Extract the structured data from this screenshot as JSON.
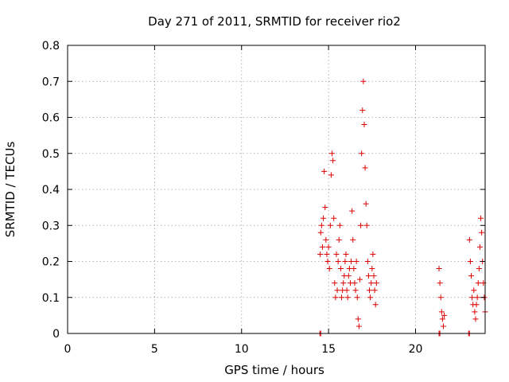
{
  "chart_data": {
    "type": "scatter",
    "title": "Day 271 of 2011, SRMTID for receiver rio2",
    "xlabel": "GPS time / hours",
    "ylabel": "SRMTID / TECUs",
    "xlim": [
      0,
      24
    ],
    "ylim": [
      0,
      0.8
    ],
    "xticks": [
      0,
      5,
      10,
      15,
      20
    ],
    "xtick_labels": [
      "0",
      "5",
      "10",
      "15",
      "20"
    ],
    "yticks": [
      0,
      0.1,
      0.2,
      0.3,
      0.4,
      0.5,
      0.6,
      0.7,
      0.8
    ],
    "ytick_labels": [
      "0",
      "0.1",
      "0.2",
      "0.3",
      "0.4",
      "0.5",
      "0.6",
      "0.7",
      "0.8"
    ],
    "grid": true,
    "legend": false,
    "marker": "+",
    "color": "#dd0000",
    "series": [
      {
        "name": "rio2",
        "x": [
          14.52,
          14.55,
          14.6,
          14.65,
          14.7,
          14.75,
          14.8,
          14.85,
          14.9,
          14.95,
          15.0,
          15.05,
          15.1,
          15.15,
          15.2,
          15.25,
          15.3,
          15.35,
          15.4,
          15.45,
          15.5,
          15.55,
          15.6,
          15.65,
          15.7,
          15.75,
          15.8,
          15.85,
          15.9,
          15.95,
          16.0,
          16.05,
          16.1,
          16.15,
          16.2,
          16.25,
          16.3,
          16.35,
          16.4,
          16.45,
          16.5,
          16.55,
          16.6,
          16.65,
          16.7,
          16.75,
          16.8,
          16.85,
          16.9,
          16.95,
          17.0,
          17.05,
          17.1,
          17.15,
          17.2,
          17.25,
          17.3,
          17.35,
          17.4,
          17.45,
          17.5,
          17.55,
          17.6,
          17.65,
          17.7,
          17.75,
          21.35,
          21.4,
          21.45,
          21.5,
          21.55,
          21.6,
          21.65,
          23.1,
          23.15,
          23.2,
          23.25,
          23.3,
          23.35,
          23.4,
          23.45,
          23.5,
          23.55,
          23.6,
          23.65,
          23.7,
          23.75,
          23.8,
          23.85,
          23.9,
          23.95,
          24.0,
          14.5,
          14.55,
          21.35,
          21.4,
          23.05,
          23.1
        ],
        "y": [
          0.22,
          0.28,
          0.3,
          0.24,
          0.32,
          0.45,
          0.35,
          0.26,
          0.22,
          0.2,
          0.24,
          0.18,
          0.3,
          0.44,
          0.5,
          0.48,
          0.32,
          0.14,
          0.1,
          0.22,
          0.12,
          0.2,
          0.26,
          0.3,
          0.18,
          0.1,
          0.12,
          0.14,
          0.16,
          0.2,
          0.22,
          0.12,
          0.1,
          0.16,
          0.18,
          0.14,
          0.2,
          0.34,
          0.26,
          0.18,
          0.14,
          0.12,
          0.2,
          0.1,
          0.04,
          0.02,
          0.15,
          0.3,
          0.5,
          0.62,
          0.7,
          0.58,
          0.46,
          0.36,
          0.3,
          0.2,
          0.16,
          0.12,
          0.1,
          0.14,
          0.18,
          0.22,
          0.16,
          0.12,
          0.08,
          0.14,
          0.18,
          0.14,
          0.1,
          0.06,
          0.04,
          0.02,
          0.05,
          0.26,
          0.2,
          0.16,
          0.1,
          0.08,
          0.12,
          0.06,
          0.04,
          0.08,
          0.1,
          0.14,
          0.18,
          0.24,
          0.32,
          0.28,
          0.2,
          0.14,
          0.1,
          0.06,
          0.0,
          0.0,
          0.0,
          0.0,
          0.0,
          0.0
        ]
      }
    ]
  }
}
